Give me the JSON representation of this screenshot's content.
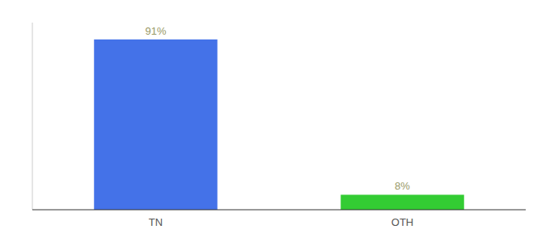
{
  "chart_data": {
    "type": "bar",
    "categories": [
      "TN",
      "OTH"
    ],
    "values": [
      91,
      8
    ],
    "value_labels": [
      "91%",
      "8%"
    ],
    "colors": [
      "#4472e8",
      "#33cc33"
    ],
    "ylim": [
      0,
      100
    ],
    "data_labels": true,
    "tick_labels": "x",
    "grid": false
  }
}
